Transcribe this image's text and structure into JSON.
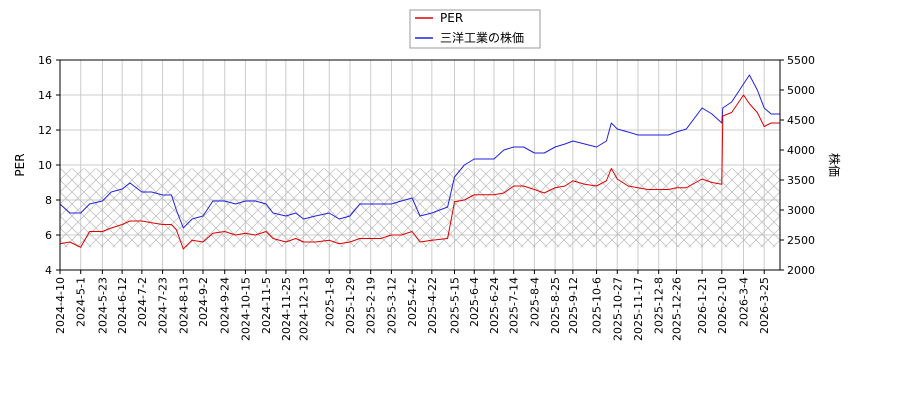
{
  "chart_data": {
    "type": "line",
    "title": "",
    "legend": {
      "placement": "top-center",
      "entries": [
        {
          "label": "PER",
          "color": "#dd0000"
        },
        {
          "label": "三洋工業の株価",
          "color": "#2222dd"
        }
      ]
    },
    "left_axis": {
      "label": "PER",
      "range": [
        4,
        16
      ],
      "ticks": [
        "4",
        "6",
        "8",
        "10",
        "12",
        "14",
        "16"
      ]
    },
    "right_axis": {
      "label": "株価",
      "range": [
        2000,
        5500
      ],
      "ticks": [
        "2000",
        "2500",
        "3000",
        "3500",
        "4000",
        "4500",
        "5000",
        "5500"
      ]
    },
    "grid": true,
    "x_axis": {
      "type": "date",
      "range": [
        "2024-04-10",
        "2026-04-10"
      ],
      "ticks": [
        "2024-4-10",
        "2024-5-1",
        "2024-5-23",
        "2024-6-12",
        "2024-7-2",
        "2024-7-23",
        "2024-8-13",
        "2024-9-2",
        "2024-9-24",
        "2024-10-15",
        "2024-11-5",
        "2024-11-25",
        "2024-12-13",
        "2025-1-8",
        "2025-1-29",
        "2025-2-19",
        "2025-3-12",
        "2025-4-2",
        "2025-4-22",
        "2025-5-15",
        "2025-6-4",
        "2025-6-24",
        "2025-7-14",
        "2025-8-4",
        "2025-8-25",
        "2025-9-12",
        "2025-10-6",
        "2025-10-27",
        "2025-11-17",
        "2025-12-8",
        "2025-12-26",
        "2026-1-21",
        "2026-2-10",
        "2026-3-4",
        "2026-3-25"
      ]
    },
    "hatched_band": {
      "axis": "left",
      "range": [
        5.3,
        9.8
      ]
    },
    "series": [
      {
        "name": "PER",
        "axis": "left",
        "color": "#dd0000",
        "x": [
          "2024-04-10",
          "2024-04-20",
          "2024-05-01",
          "2024-05-10",
          "2024-05-23",
          "2024-06-01",
          "2024-06-12",
          "2024-06-20",
          "2024-07-02",
          "2024-07-12",
          "2024-07-23",
          "2024-08-01",
          "2024-08-06",
          "2024-08-13",
          "2024-08-22",
          "2024-09-02",
          "2024-09-12",
          "2024-09-24",
          "2024-10-05",
          "2024-10-15",
          "2024-10-25",
          "2024-11-05",
          "2024-11-12",
          "2024-11-25",
          "2024-12-05",
          "2024-12-13",
          "2024-12-25",
          "2025-01-08",
          "2025-01-18",
          "2025-01-29",
          "2025-02-08",
          "2025-02-19",
          "2025-03-01",
          "2025-03-12",
          "2025-03-22",
          "2025-04-02",
          "2025-04-10",
          "2025-04-22",
          "2025-05-08",
          "2025-05-15",
          "2025-05-25",
          "2025-06-04",
          "2025-06-14",
          "2025-06-24",
          "2025-07-04",
          "2025-07-14",
          "2025-07-24",
          "2025-08-04",
          "2025-08-14",
          "2025-08-25",
          "2025-09-04",
          "2025-09-12",
          "2025-09-24",
          "2025-10-06",
          "2025-10-16",
          "2025-10-21",
          "2025-10-27",
          "2025-11-07",
          "2025-11-17",
          "2025-11-27",
          "2025-12-08",
          "2025-12-18",
          "2025-12-26",
          "2026-01-05",
          "2026-01-21",
          "2026-01-31",
          "2026-02-10",
          "2026-02-11",
          "2026-02-20",
          "2026-03-04",
          "2026-03-10",
          "2026-03-18",
          "2026-03-25",
          "2026-04-01",
          "2026-04-10"
        ],
        "y": [
          5.5,
          5.6,
          5.3,
          6.2,
          6.2,
          6.4,
          6.6,
          6.8,
          6.8,
          6.7,
          6.6,
          6.6,
          6.3,
          5.2,
          5.7,
          5.6,
          6.1,
          6.2,
          6.0,
          6.1,
          6.0,
          6.2,
          5.8,
          5.6,
          5.8,
          5.6,
          5.6,
          5.7,
          5.5,
          5.6,
          5.8,
          5.8,
          5.8,
          6.0,
          6.0,
          6.2,
          5.6,
          5.7,
          5.8,
          7.9,
          8.0,
          8.3,
          8.3,
          8.3,
          8.4,
          8.8,
          8.8,
          8.6,
          8.4,
          8.7,
          8.8,
          9.1,
          8.9,
          8.8,
          9.1,
          9.8,
          9.2,
          8.8,
          8.7,
          8.6,
          8.6,
          8.6,
          8.7,
          8.7,
          9.2,
          9.0,
          8.9,
          12.8,
          13.0,
          14.0,
          13.5,
          13.0,
          12.2,
          12.4,
          12.4
        ]
      },
      {
        "name": "三洋工業の株価",
        "axis": "right",
        "color": "#2222dd",
        "x": [
          "2024-04-10",
          "2024-04-20",
          "2024-05-01",
          "2024-05-10",
          "2024-05-23",
          "2024-06-01",
          "2024-06-12",
          "2024-06-20",
          "2024-07-02",
          "2024-07-12",
          "2024-07-23",
          "2024-08-01",
          "2024-08-06",
          "2024-08-13",
          "2024-08-22",
          "2024-09-02",
          "2024-09-12",
          "2024-09-24",
          "2024-10-05",
          "2024-10-15",
          "2024-10-25",
          "2024-11-05",
          "2024-11-12",
          "2024-11-25",
          "2024-12-05",
          "2024-12-13",
          "2024-12-25",
          "2025-01-08",
          "2025-01-18",
          "2025-01-29",
          "2025-02-08",
          "2025-02-19",
          "2025-03-01",
          "2025-03-12",
          "2025-03-22",
          "2025-04-02",
          "2025-04-10",
          "2025-04-22",
          "2025-05-08",
          "2025-05-15",
          "2025-05-25",
          "2025-06-04",
          "2025-06-14",
          "2025-06-24",
          "2025-07-04",
          "2025-07-14",
          "2025-07-24",
          "2025-08-04",
          "2025-08-14",
          "2025-08-25",
          "2025-09-04",
          "2025-09-12",
          "2025-09-24",
          "2025-10-06",
          "2025-10-16",
          "2025-10-21",
          "2025-10-27",
          "2025-11-07",
          "2025-11-17",
          "2025-11-27",
          "2025-12-08",
          "2025-12-18",
          "2025-12-26",
          "2026-01-05",
          "2026-01-21",
          "2026-01-31",
          "2026-02-10",
          "2026-02-11",
          "2026-02-20",
          "2026-03-04",
          "2026-03-10",
          "2026-03-18",
          "2026-03-25",
          "2026-04-01",
          "2026-04-10"
        ],
        "y": [
          3100,
          2950,
          2950,
          3100,
          3150,
          3300,
          3350,
          3450,
          3300,
          3300,
          3250,
          3250,
          3000,
          2700,
          2850,
          2900,
          3150,
          3150,
          3100,
          3150,
          3150,
          3100,
          2950,
          2900,
          2950,
          2850,
          2900,
          2950,
          2850,
          2900,
          3100,
          3100,
          3100,
          3100,
          3150,
          3200,
          2900,
          2950,
          3050,
          3550,
          3750,
          3850,
          3850,
          3850,
          4000,
          4050,
          4050,
          3950,
          3950,
          4050,
          4100,
          4150,
          4100,
          4050,
          4150,
          4450,
          4350,
          4300,
          4250,
          4250,
          4250,
          4250,
          4300,
          4350,
          4700,
          4600,
          4450,
          4700,
          4800,
          5100,
          5250,
          5000,
          4700,
          4600,
          4600
        ]
      }
    ]
  }
}
